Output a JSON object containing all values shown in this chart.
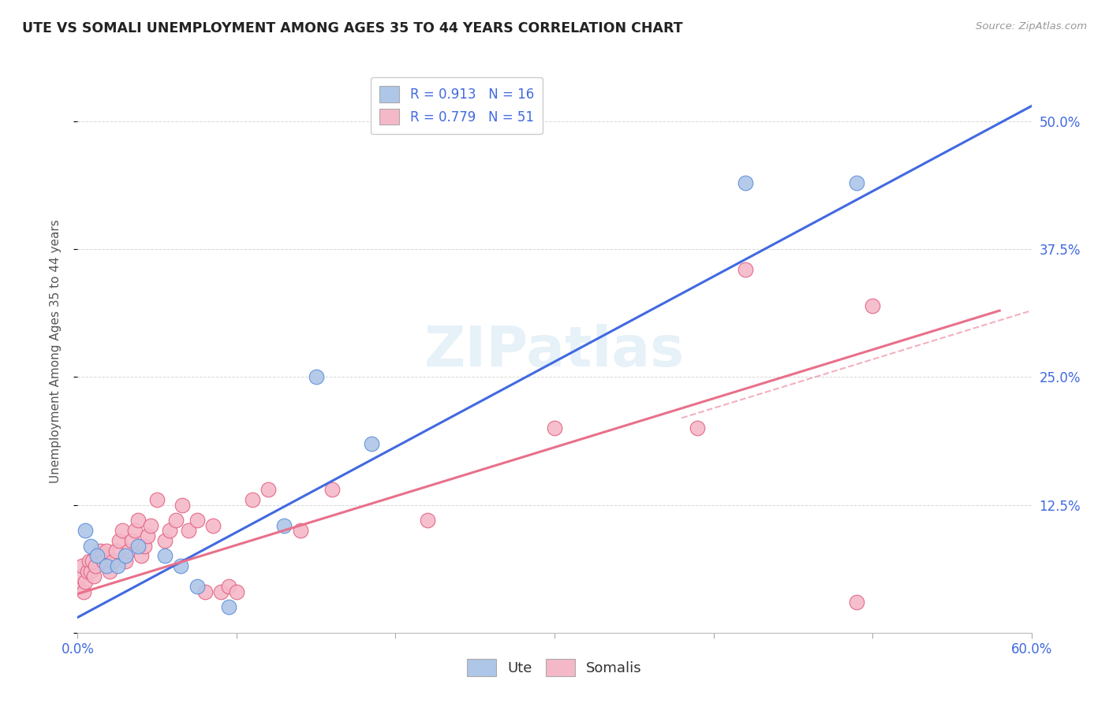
{
  "title": "UTE VS SOMALI UNEMPLOYMENT AMONG AGES 35 TO 44 YEARS CORRELATION CHART",
  "source": "Source: ZipAtlas.com",
  "ylabel": "Unemployment Among Ages 35 to 44 years",
  "xlim": [
    0.0,
    0.6
  ],
  "ylim": [
    0.0,
    0.55
  ],
  "xtick_vals": [
    0.0,
    0.1,
    0.2,
    0.3,
    0.4,
    0.5,
    0.6
  ],
  "ytick_vals": [
    0.0,
    0.125,
    0.25,
    0.375,
    0.5
  ],
  "ytick_labels": [
    "",
    "12.5%",
    "25.0%",
    "37.5%",
    "50.0%"
  ],
  "xtick_labels": [
    "0.0%",
    "",
    "",
    "",
    "",
    "",
    "60.0%"
  ],
  "ute_color": "#aec6e8",
  "somali_color": "#f5b8c8",
  "ute_edge_color": "#5b8dd9",
  "somali_edge_color": "#e06080",
  "ute_line_color": "#4169E1",
  "somali_line_color": "#e8708a",
  "background_color": "#ffffff",
  "watermark": "ZIPatlas",
  "ute_R": 0.913,
  "ute_N": 16,
  "somali_R": 0.779,
  "somali_N": 51,
  "ute_points": [
    [
      0.005,
      0.1
    ],
    [
      0.008,
      0.085
    ],
    [
      0.012,
      0.075
    ],
    [
      0.018,
      0.065
    ],
    [
      0.025,
      0.065
    ],
    [
      0.03,
      0.075
    ],
    [
      0.038,
      0.085
    ],
    [
      0.055,
      0.075
    ],
    [
      0.065,
      0.065
    ],
    [
      0.075,
      0.045
    ],
    [
      0.095,
      0.025
    ],
    [
      0.13,
      0.105
    ],
    [
      0.15,
      0.25
    ],
    [
      0.185,
      0.185
    ],
    [
      0.42,
      0.44
    ],
    [
      0.49,
      0.44
    ]
  ],
  "somali_points": [
    [
      0.0,
      0.045
    ],
    [
      0.002,
      0.055
    ],
    [
      0.003,
      0.065
    ],
    [
      0.004,
      0.04
    ],
    [
      0.005,
      0.05
    ],
    [
      0.006,
      0.06
    ],
    [
      0.007,
      0.07
    ],
    [
      0.008,
      0.06
    ],
    [
      0.009,
      0.07
    ],
    [
      0.01,
      0.055
    ],
    [
      0.011,
      0.065
    ],
    [
      0.013,
      0.075
    ],
    [
      0.014,
      0.08
    ],
    [
      0.016,
      0.07
    ],
    [
      0.018,
      0.08
    ],
    [
      0.02,
      0.06
    ],
    [
      0.022,
      0.07
    ],
    [
      0.024,
      0.08
    ],
    [
      0.026,
      0.09
    ],
    [
      0.028,
      0.1
    ],
    [
      0.03,
      0.07
    ],
    [
      0.032,
      0.08
    ],
    [
      0.034,
      0.09
    ],
    [
      0.036,
      0.1
    ],
    [
      0.038,
      0.11
    ],
    [
      0.04,
      0.075
    ],
    [
      0.042,
      0.085
    ],
    [
      0.044,
      0.095
    ],
    [
      0.046,
      0.105
    ],
    [
      0.05,
      0.13
    ],
    [
      0.055,
      0.09
    ],
    [
      0.058,
      0.1
    ],
    [
      0.062,
      0.11
    ],
    [
      0.066,
      0.125
    ],
    [
      0.07,
      0.1
    ],
    [
      0.075,
      0.11
    ],
    [
      0.08,
      0.04
    ],
    [
      0.085,
      0.105
    ],
    [
      0.09,
      0.04
    ],
    [
      0.095,
      0.045
    ],
    [
      0.1,
      0.04
    ],
    [
      0.11,
      0.13
    ],
    [
      0.12,
      0.14
    ],
    [
      0.14,
      0.1
    ],
    [
      0.16,
      0.14
    ],
    [
      0.22,
      0.11
    ],
    [
      0.3,
      0.2
    ],
    [
      0.39,
      0.2
    ],
    [
      0.42,
      0.355
    ],
    [
      0.49,
      0.03
    ],
    [
      0.5,
      0.32
    ]
  ],
  "ute_line": {
    "x0": 0.0,
    "y0": 0.015,
    "x1": 0.6,
    "y1": 0.515
  },
  "somali_line": {
    "x0": 0.0,
    "y0": 0.038,
    "x1": 0.58,
    "y1": 0.315
  },
  "somali_dash_line": {
    "x0": 0.38,
    "y0": 0.21,
    "x1": 0.6,
    "y1": 0.315
  }
}
